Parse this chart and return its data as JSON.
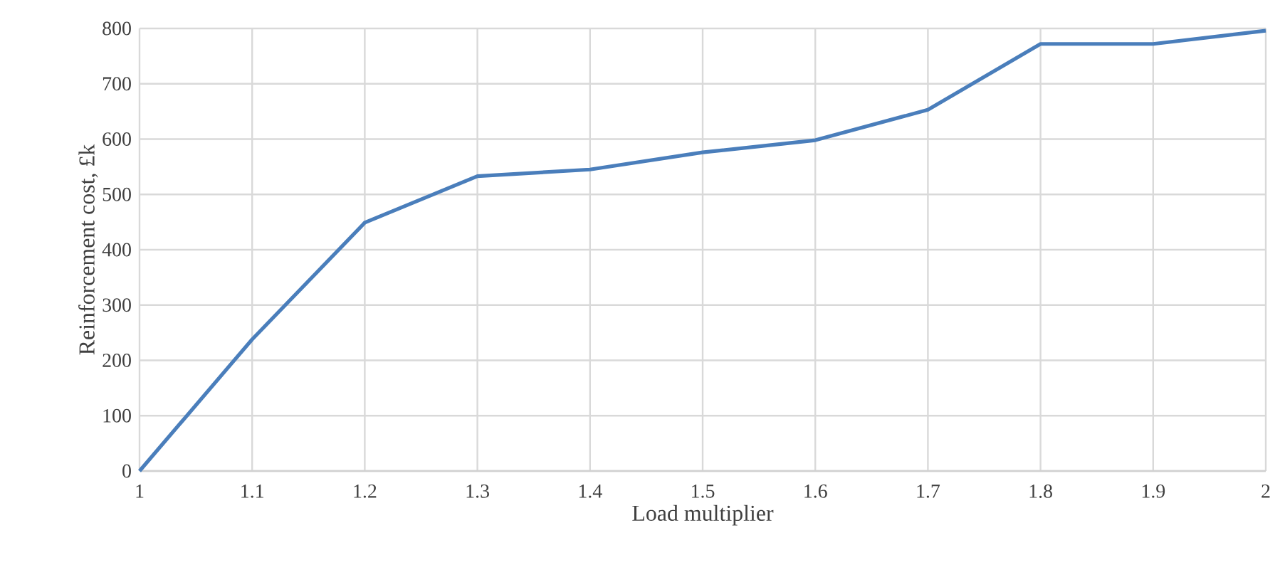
{
  "chart_data": {
    "type": "line",
    "xlabel": "Load multiplier",
    "ylabel": "Reinforcement cost, £k",
    "x": [
      1,
      1.1,
      1.2,
      1.3,
      1.4,
      1.5,
      1.6,
      1.7,
      1.8,
      1.9,
      2
    ],
    "series": [
      {
        "color": "#4a7ebb",
        "values": [
          0,
          238,
          449,
          533,
          545,
          576,
          598,
          653,
          772,
          772,
          796
        ]
      }
    ],
    "xlim": [
      1,
      2
    ],
    "ylim": [
      0,
      800
    ],
    "xticks": [
      1,
      1.1,
      1.2,
      1.3,
      1.4,
      1.5,
      1.6,
      1.7,
      1.8,
      1.9,
      2
    ],
    "yticks": [
      0,
      100,
      200,
      300,
      400,
      500,
      600,
      700,
      800
    ],
    "grid": true,
    "marker": "none",
    "line_style": "solid"
  }
}
